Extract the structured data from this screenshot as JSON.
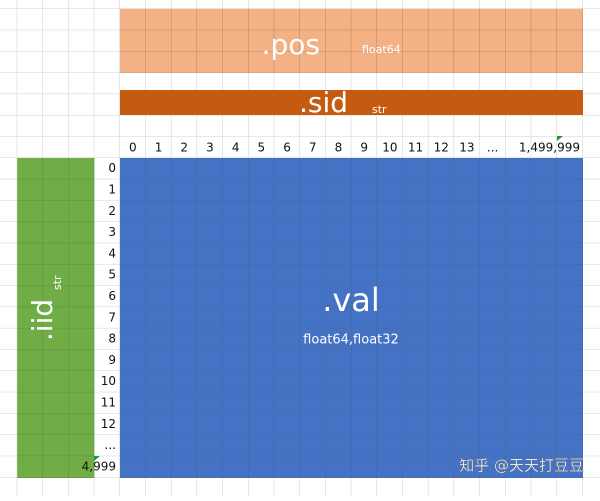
{
  "pos": {
    "label": ".pos",
    "dtype": "float64"
  },
  "sid": {
    "label": ".sid",
    "dtype": "str"
  },
  "iid": {
    "label": ".iid",
    "dtype": "str"
  },
  "val": {
    "label": ".val",
    "dtype": "float64,float32"
  },
  "columns": [
    "0",
    "1",
    "2",
    "3",
    "4",
    "5",
    "6",
    "7",
    "8",
    "9",
    "10",
    "11",
    "12",
    "13",
    "...",
    "1,499,999"
  ],
  "rows": [
    "0",
    "1",
    "2",
    "3",
    "4",
    "5",
    "6",
    "7",
    "8",
    "9",
    "10",
    "11",
    "12",
    "...",
    "4,999"
  ],
  "watermark": "知乎 @天天打豆豆"
}
